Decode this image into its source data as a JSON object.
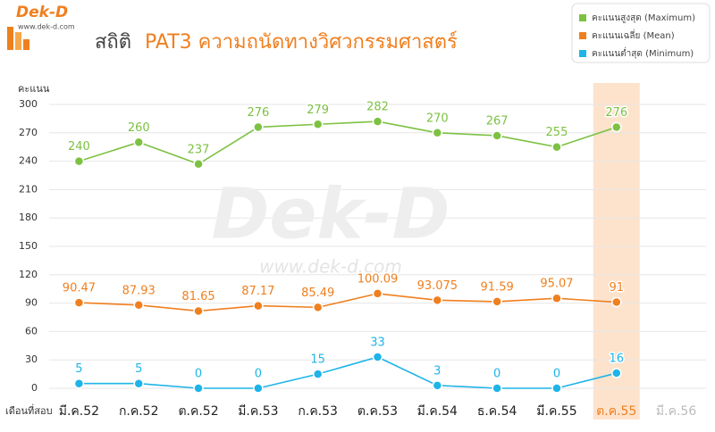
{
  "logo": {
    "name": "Dek-D",
    "url": "www.dek-d.com"
  },
  "chart_data": {
    "type": "line",
    "title": "สถิติ",
    "subtitle": "PAT3 ความถนัดทางวิศวกรรมศาสตร์",
    "y_label": "คะแนน",
    "x_label": "เดือนที่สอบ",
    "watermark": {
      "name": "Dek-D",
      "url": "www.dek-d.com"
    },
    "categories": [
      "มี.ค.52",
      "ก.ค.52",
      "ต.ค.52",
      "มี.ค.53",
      "ก.ค.53",
      "ต.ค.53",
      "มี.ค.54",
      "ธ.ค.54",
      "มี.ค.55",
      "ต.ค.55",
      "มี.ค.56"
    ],
    "highlight_index": 9,
    "highlight_color": "#fde3cc",
    "series": [
      {
        "name": "คะแนนสูงสุด (Maximum)",
        "color": "#7dc142",
        "values": [
          240,
          260,
          237,
          276,
          279,
          282,
          270,
          267,
          255,
          276,
          null
        ]
      },
      {
        "name": "คะแนนเฉลี่ย (Mean)",
        "color": "#f07f1e",
        "values": [
          90.47,
          87.93,
          81.65,
          87.17,
          85.49,
          100.09,
          93.075,
          91.59,
          95.07,
          91,
          null
        ]
      },
      {
        "name": "คะแนนต่ำสุด (Minimum)",
        "color": "#1eb4e8",
        "values": [
          5,
          5,
          0,
          0,
          15,
          33,
          3,
          0,
          0,
          16,
          null
        ]
      }
    ],
    "ylim": [
      0,
      300
    ],
    "yticks": [
      0,
      30,
      60,
      90,
      120,
      150,
      180,
      210,
      240,
      270,
      300
    ],
    "grid": true,
    "legend": "top-right"
  }
}
